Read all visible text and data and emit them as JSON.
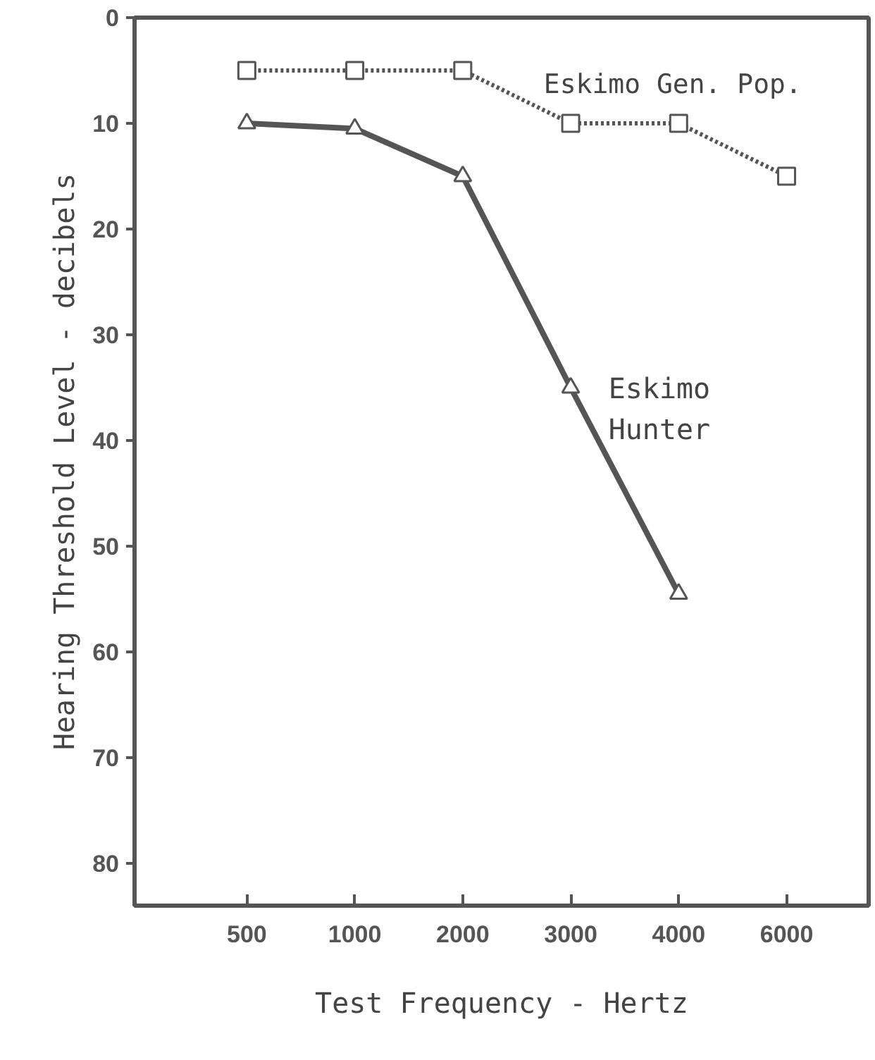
{
  "chart_data": {
    "type": "line",
    "xlabel": "Test Frequency - Hertz",
    "ylabel": "Hearing Threshold Level - decibels",
    "categories": [
      "500",
      "1000",
      "2000",
      "3000",
      "4000",
      "6000"
    ],
    "ylim": [
      84,
      0
    ],
    "yticks": [
      0,
      10,
      20,
      30,
      40,
      50,
      60,
      70,
      80
    ],
    "grid": false,
    "series": [
      {
        "name": "Eskimo Gen. Pop.",
        "color": "#555555",
        "values": [
          5,
          5,
          5,
          10,
          10,
          15
        ],
        "marker": "square",
        "line_style": "dotted"
      },
      {
        "name": "Eskimo Hunter",
        "color": "#555555",
        "values": [
          10,
          10.5,
          15,
          35,
          54.5,
          null
        ],
        "marker": "triangle",
        "line_style": "solid"
      }
    ]
  }
}
